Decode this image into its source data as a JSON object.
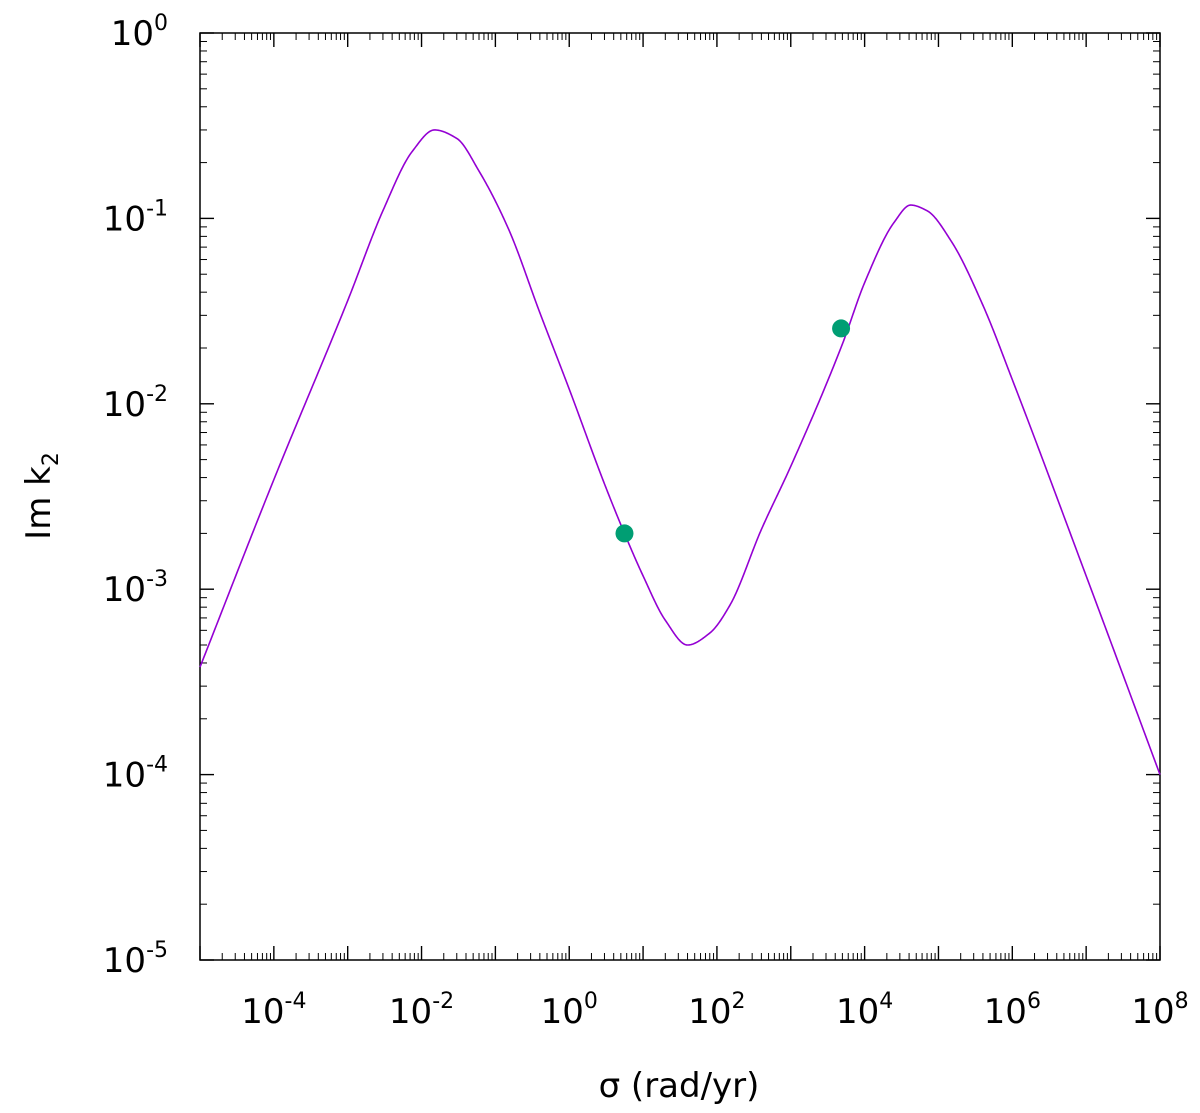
{
  "chart_data": {
    "type": "line",
    "title": "",
    "xlabel": "σ (rad/yr)",
    "ylabel_main": "Im k",
    "ylabel_sub": "2",
    "xscale": "log",
    "yscale": "log",
    "xlim": [
      1e-05,
      100000000
    ],
    "ylim": [
      1e-05,
      1
    ],
    "grid": false,
    "legend": "none",
    "x_tick_labels": [
      {
        "base": "10",
        "exp": "-4",
        "value": 0.0001
      },
      {
        "base": "10",
        "exp": "-2",
        "value": 0.01
      },
      {
        "base": "10",
        "exp": "0",
        "value": 1
      },
      {
        "base": "10",
        "exp": "2",
        "value": 100
      },
      {
        "base": "10",
        "exp": "4",
        "value": 10000
      },
      {
        "base": "10",
        "exp": "6",
        "value": 1000000
      },
      {
        "base": "10",
        "exp": "8",
        "value": 100000000
      }
    ],
    "y_tick_labels": [
      {
        "base": "10",
        "exp": "-5",
        "value": 1e-05
      },
      {
        "base": "10",
        "exp": "-4",
        "value": 0.0001
      },
      {
        "base": "10",
        "exp": "-3",
        "value": 0.001
      },
      {
        "base": "10",
        "exp": "-2",
        "value": 0.01
      },
      {
        "base": "10",
        "exp": "-1",
        "value": 0.1
      },
      {
        "base": "10",
        "exp": "0",
        "value": 1
      }
    ],
    "series": [
      {
        "color": "#9400d3",
        "x": [
          1e-05,
          0.0001,
          0.001,
          0.003,
          0.0075,
          0.015,
          0.03,
          0.06,
          0.15,
          0.4,
          1,
          3,
          5.6,
          10,
          20,
          40,
          80,
          150,
          400,
          1000,
          5000,
          10000,
          25000,
          42000,
          70000,
          150000,
          400000,
          1000000,
          10000000,
          100000000
        ],
        "y": [
          0.00038,
          0.0039,
          0.036,
          0.11,
          0.23,
          0.3,
          0.27,
          0.18,
          0.088,
          0.031,
          0.012,
          0.0037,
          0.002,
          0.00118,
          0.00068,
          0.0005,
          0.00058,
          0.00082,
          0.0021,
          0.0046,
          0.021,
          0.045,
          0.095,
          0.118,
          0.11,
          0.075,
          0.034,
          0.0135,
          0.00118,
          0.0001
        ]
      }
    ],
    "markers": {
      "color": "#009e73",
      "x": [
        5.6,
        4800
      ],
      "y": [
        0.002,
        0.0255
      ]
    }
  }
}
